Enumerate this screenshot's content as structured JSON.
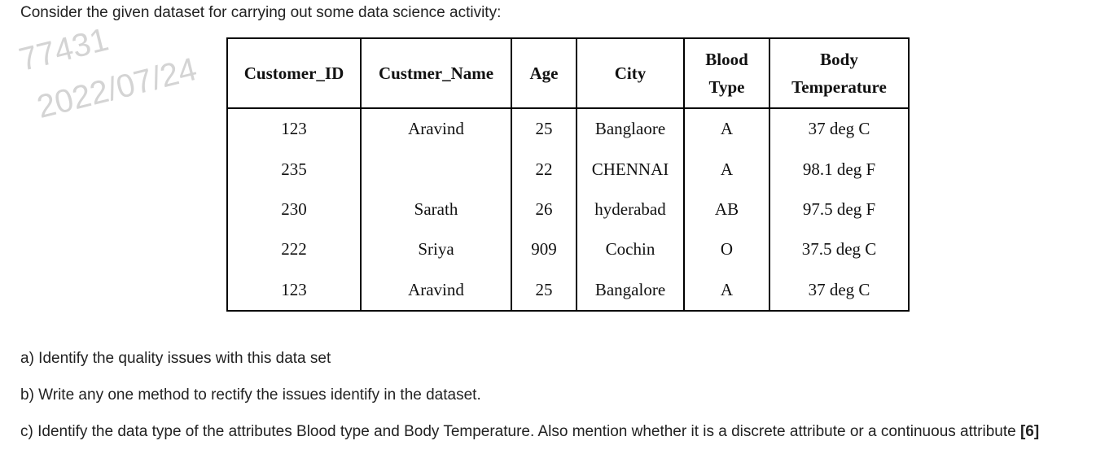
{
  "intro": "Consider the given dataset for carrying out some data science activity:",
  "watermark": [
    "77431",
    "2022/07/24"
  ],
  "table": {
    "headers": [
      "Customer_ID",
      "Custmer_Name",
      "Age",
      "City",
      "Blood Type",
      "Body Temperature"
    ],
    "rows": [
      [
        "123",
        "Aravind",
        "25",
        "Banglaore",
        "A",
        "37 deg C"
      ],
      [
        "235",
        null,
        "22",
        "CHENNAI",
        "A",
        "98.1 deg F"
      ],
      [
        "230",
        "Sarath",
        "26",
        "hyderabad",
        "AB",
        "97.5 deg F"
      ],
      [
        "222",
        "Sriya",
        "909",
        "Cochin",
        "O",
        "37.5 deg C"
      ],
      [
        "123",
        "Aravind",
        "25",
        "Bangalore",
        "A",
        "37 deg C"
      ]
    ]
  },
  "questions": [
    {
      "text": "a) Identify the quality issues with this data set"
    },
    {
      "text": "b) Write any one method to rectify the issues identify in the dataset."
    },
    {
      "text": "c) Identify the data type of the attributes Blood type and Body Temperature. Also mention whether it is a discrete attribute or a continuous attribute",
      "marks": "[6]"
    }
  ]
}
